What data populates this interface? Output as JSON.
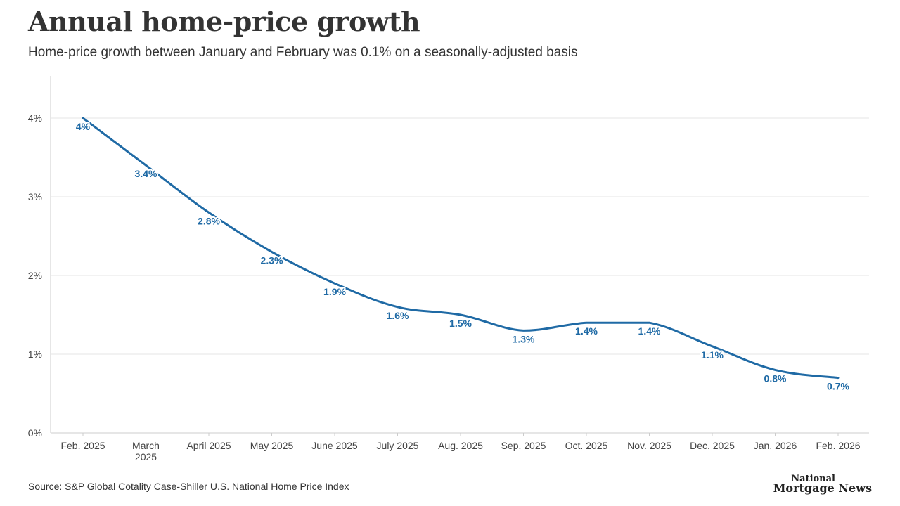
{
  "header": {
    "title": "Annual home-price growth",
    "subtitle": "Home-price growth between January and February was 0.1% on a seasonally-adjusted basis"
  },
  "footer": {
    "source": "Source: S&P Global Cotality Case-Shiller U.S. National Home Price Index",
    "logo_line1": "National",
    "logo_line2": "Mortgage News"
  },
  "colors": {
    "line": "#1f6aa5",
    "grid": "#e6e6e6",
    "axis": "#cccccc"
  },
  "chart_data": {
    "type": "line",
    "title": "Annual home-price growth",
    "xlabel": "",
    "ylabel": "",
    "categories": [
      [
        "Feb. 2025"
      ],
      [
        "March",
        "2025"
      ],
      [
        "April 2025"
      ],
      [
        "May 2025"
      ],
      [
        "June 2025"
      ],
      [
        "July 2025"
      ],
      [
        "Aug. 2025"
      ],
      [
        "Sep. 2025"
      ],
      [
        "Oct. 2025"
      ],
      [
        "Nov. 2025"
      ],
      [
        "Dec. 2025"
      ],
      [
        "Jan. 2026"
      ],
      [
        "Feb. 2026"
      ]
    ],
    "series": [
      {
        "name": "Annual home-price growth",
        "values": [
          4,
          3.4,
          2.8,
          2.3,
          1.9,
          1.6,
          1.5,
          1.3,
          1.4,
          1.4,
          1.1,
          0.8,
          0.7
        ],
        "labels": [
          "4%",
          "3.4%",
          "2.8%",
          "2.3%",
          "1.9%",
          "1.6%",
          "1.5%",
          "1.3%",
          "1.4%",
          "1.4%",
          "1.1%",
          "0.8%",
          "0.7%"
        ]
      }
    ],
    "yticks": [
      0,
      1,
      2,
      3,
      4
    ],
    "ytick_labels": [
      "0%",
      "1%",
      "2%",
      "3%",
      "4%"
    ],
    "ylim": [
      0,
      4.5
    ],
    "grid": true
  }
}
